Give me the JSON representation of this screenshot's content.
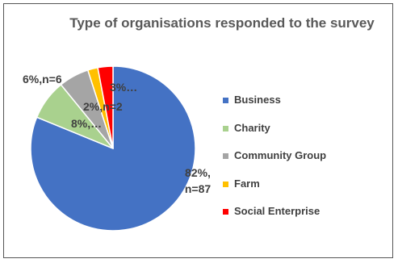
{
  "chart_data": {
    "type": "pie",
    "title": "Type of organisations responded to the survey",
    "categories": [
      "Business",
      "Charity",
      "Community Group",
      "Farm",
      "Social Enterprise"
    ],
    "values": [
      82,
      8,
      6,
      2,
      3
    ],
    "value_labels": [
      "82%, n=87",
      "8%,…",
      "6%,n=6",
      "2%,n=2",
      "3%…"
    ],
    "colors": [
      "#4472c4",
      "#a9d18e",
      "#a5a5a5",
      "#ffc000",
      "#ff0000"
    ],
    "legend": "right"
  }
}
